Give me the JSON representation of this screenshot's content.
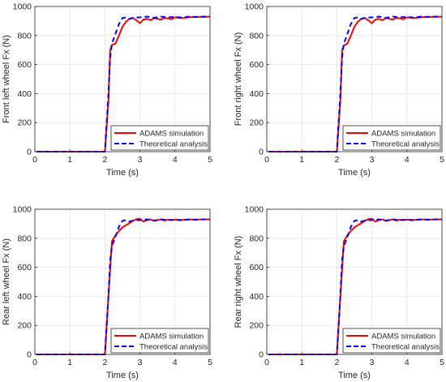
{
  "colors": {
    "adams": "#ff0000",
    "theory": "#0000ff",
    "grid": "#e6e6e6",
    "axis": "#262626"
  },
  "legend": {
    "adams_label": "ADAMS simulation",
    "theory_label": "Theoretical analysis",
    "placement": "bottom-right"
  },
  "chart_data": [
    {
      "type": "line",
      "ylabel": "Front left wheel Fx (N)",
      "xlabel": "Time (s)",
      "xlim": [
        0,
        5
      ],
      "ylim": [
        0,
        1000
      ],
      "xticks": [
        0,
        1,
        2,
        3,
        4,
        5
      ],
      "yticks": [
        0,
        200,
        400,
        600,
        800,
        1000
      ],
      "grid": true,
      "series": [
        {
          "name": "ADAMS simulation",
          "x": [
            0.05,
            2.0,
            2.1,
            2.15,
            2.2,
            2.3,
            2.4,
            2.5,
            2.6,
            2.7,
            2.8,
            2.9,
            3.0,
            3.1,
            3.2,
            3.3,
            3.4,
            3.5,
            3.6,
            3.7,
            3.8,
            3.9,
            4.0,
            4.2,
            4.4,
            4.6,
            4.8,
            5.0
          ],
          "y": [
            0,
            0,
            350,
            700,
            735,
            745,
            800,
            860,
            895,
            915,
            920,
            905,
            885,
            910,
            915,
            905,
            920,
            915,
            910,
            922,
            918,
            912,
            925,
            920,
            926,
            928,
            928,
            930
          ]
        },
        {
          "name": "Theoretical analysis",
          "x": [
            0.05,
            2.0,
            2.1,
            2.15,
            2.2,
            2.3,
            2.4,
            2.5,
            2.6,
            2.7,
            2.8,
            3.0,
            3.2,
            3.4,
            3.6,
            3.8,
            4.0,
            4.2,
            4.4,
            4.6,
            4.8,
            5.0
          ],
          "y": [
            0,
            0,
            400,
            650,
            745,
            810,
            880,
            920,
            925,
            915,
            922,
            925,
            930,
            922,
            930,
            925,
            928,
            924,
            930,
            928,
            930,
            930
          ]
        }
      ]
    },
    {
      "type": "line",
      "ylabel": "Front right wheel Fx (N)",
      "xlabel": "Time (s)",
      "xlim": [
        0,
        5
      ],
      "ylim": [
        0,
        1000
      ],
      "xticks": [
        0,
        1,
        2,
        3,
        4,
        5
      ],
      "yticks": [
        0,
        200,
        400,
        600,
        800,
        1000
      ],
      "grid": true,
      "series": [
        {
          "name": "ADAMS simulation",
          "x": [
            0.05,
            2.0,
            2.1,
            2.15,
            2.2,
            2.3,
            2.4,
            2.5,
            2.6,
            2.7,
            2.8,
            2.9,
            3.0,
            3.1,
            3.2,
            3.3,
            3.4,
            3.5,
            3.6,
            3.7,
            3.8,
            3.9,
            4.0,
            4.2,
            4.4,
            4.6,
            4.8,
            5.0
          ],
          "y": [
            0,
            0,
            350,
            700,
            730,
            745,
            800,
            860,
            895,
            915,
            920,
            905,
            885,
            910,
            915,
            905,
            920,
            915,
            910,
            922,
            918,
            912,
            925,
            920,
            926,
            928,
            928,
            930
          ]
        },
        {
          "name": "Theoretical analysis",
          "x": [
            0.05,
            2.0,
            2.1,
            2.15,
            2.2,
            2.3,
            2.4,
            2.5,
            2.6,
            2.7,
            2.8,
            3.0,
            3.2,
            3.4,
            3.6,
            3.8,
            4.0,
            4.2,
            4.4,
            4.6,
            4.8,
            5.0
          ],
          "y": [
            0,
            0,
            400,
            650,
            745,
            810,
            880,
            920,
            925,
            915,
            922,
            925,
            930,
            922,
            930,
            925,
            928,
            924,
            930,
            928,
            930,
            930
          ]
        }
      ]
    },
    {
      "type": "line",
      "ylabel": "Rear left wheel Fx (N)",
      "xlabel": "Time (s)",
      "xlim": [
        0,
        5
      ],
      "ylim": [
        0,
        1000
      ],
      "xticks": [
        0,
        1,
        2,
        3,
        4,
        5
      ],
      "yticks": [
        0,
        200,
        400,
        600,
        800,
        1000
      ],
      "grid": true,
      "series": [
        {
          "name": "ADAMS simulation",
          "x": [
            0.05,
            2.0,
            2.1,
            2.2,
            2.3,
            2.4,
            2.5,
            2.6,
            2.7,
            2.8,
            2.9,
            3.0,
            3.1,
            3.2,
            3.3,
            3.4,
            3.5,
            3.6,
            3.7,
            3.8,
            3.9,
            4.0,
            4.2,
            4.4,
            4.6,
            4.8,
            5.0
          ],
          "y": [
            0,
            0,
            400,
            780,
            820,
            850,
            875,
            890,
            905,
            920,
            932,
            935,
            915,
            925,
            930,
            920,
            925,
            930,
            922,
            928,
            925,
            928,
            926,
            930,
            928,
            930,
            930
          ]
        },
        {
          "name": "Theoretical analysis",
          "x": [
            0.05,
            2.0,
            2.1,
            2.15,
            2.2,
            2.3,
            2.4,
            2.5,
            2.6,
            2.7,
            2.8,
            3.0,
            3.2,
            3.4,
            3.6,
            3.8,
            4.0,
            4.2,
            4.4,
            4.6,
            4.8,
            5.0
          ],
          "y": [
            0,
            0,
            400,
            650,
            745,
            810,
            880,
            920,
            925,
            915,
            922,
            925,
            930,
            922,
            930,
            925,
            928,
            924,
            930,
            928,
            930,
            930
          ]
        }
      ]
    },
    {
      "type": "line",
      "ylabel": "Rear right wheel Fx (N)",
      "xlabel": "Time (s)",
      "xlim": [
        0,
        5
      ],
      "ylim": [
        0,
        1000
      ],
      "xticks": [
        0,
        1,
        2,
        3,
        4,
        5
      ],
      "yticks": [
        0,
        200,
        400,
        600,
        800,
        1000
      ],
      "grid": true,
      "series": [
        {
          "name": "ADAMS simulation",
          "x": [
            0.05,
            2.0,
            2.1,
            2.2,
            2.3,
            2.4,
            2.5,
            2.6,
            2.7,
            2.8,
            2.9,
            3.0,
            3.1,
            3.2,
            3.3,
            3.4,
            3.5,
            3.6,
            3.7,
            3.8,
            3.9,
            4.0,
            4.2,
            4.4,
            4.6,
            4.8,
            5.0
          ],
          "y": [
            0,
            0,
            400,
            780,
            820,
            850,
            875,
            890,
            905,
            920,
            932,
            935,
            915,
            925,
            930,
            920,
            925,
            930,
            922,
            928,
            925,
            928,
            926,
            930,
            928,
            930,
            930
          ]
        },
        {
          "name": "Theoretical analysis",
          "x": [
            0.05,
            2.0,
            2.1,
            2.15,
            2.2,
            2.3,
            2.4,
            2.5,
            2.6,
            2.7,
            2.8,
            3.0,
            3.2,
            3.4,
            3.6,
            3.8,
            4.0,
            4.2,
            4.4,
            4.6,
            4.8,
            5.0
          ],
          "y": [
            0,
            0,
            400,
            650,
            745,
            810,
            880,
            920,
            925,
            915,
            922,
            925,
            930,
            922,
            930,
            925,
            928,
            924,
            930,
            928,
            930,
            930
          ]
        }
      ]
    }
  ]
}
